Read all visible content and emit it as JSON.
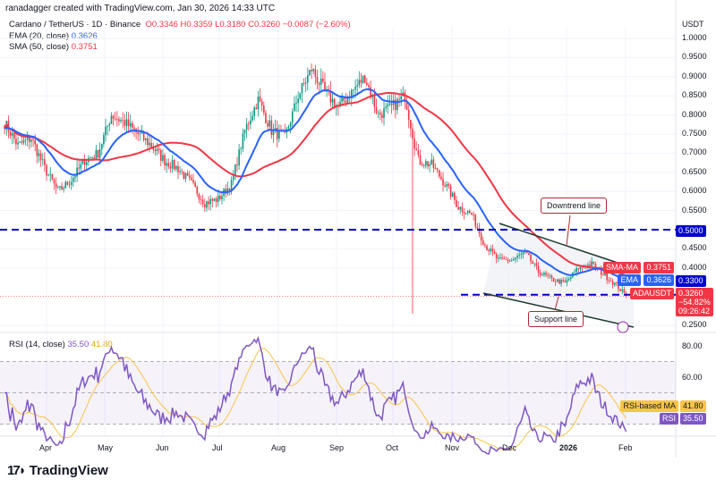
{
  "header": {
    "credit": "ranadagger created with TradingView.com, Jan 30, 2026 14:33 UTC"
  },
  "legend": {
    "symbol": "Cardano / TetherUS · 1D · Binance",
    "o": "O0.3346",
    "h": "H0.3359",
    "l": "L0.3180",
    "c": "C0.3260",
    "chg": "−0.0087 (−2.60%)",
    "ema_label": "EMA (20, close)",
    "ema_val": "0.3626",
    "sma_label": "SMA (50, close)",
    "sma_val": "0.3751",
    "rsi_label": "RSI (14, close)",
    "rsi_val": "35.50",
    "rsi_ma_val": "41.80"
  },
  "price_axis": {
    "currency": "USDT",
    "ticks": [
      "1.0000",
      "0.9500",
      "0.9000",
      "0.8500",
      "0.8000",
      "0.7500",
      "0.7000",
      "0.6500",
      "0.6000",
      "0.5500",
      "0.4500",
      "0.4000",
      "0.2500"
    ]
  },
  "tags": {
    "sma_name": "SMA-MA",
    "sma": "0.3751",
    "ema_name": "EMA",
    "ema": "0.3626",
    "level": "0.3300",
    "sym": "ADAUSDT",
    "price": "0.3260",
    "pct": "−54.82%",
    "countdown": "09:26:42",
    "level2": "0.5000",
    "rsi_ma_name": "RSI-based MA",
    "rsi_ma": "41.80",
    "rsi_name": "RSI",
    "rsi": "35.50"
  },
  "rsi_axis": {
    "ticks": [
      "80.00",
      "60.00"
    ]
  },
  "time_axis": {
    "ticks": [
      "Apr",
      "May",
      "Jun",
      "Jul",
      "Aug",
      "Sep",
      "Oct",
      "Nov",
      "Dec",
      "2026",
      "Feb"
    ]
  },
  "annotations": {
    "downtrend": "Downtrend line",
    "support": "Support line"
  },
  "brand": "TradingView",
  "colors": {
    "up": "#089981",
    "down": "#f23645",
    "ema": "#2962ff",
    "sma": "#f23645",
    "rsi": "#7e57c2",
    "rsi_ma": "#f7c548",
    "level": "#0000cc",
    "channel": "#1e3a2f"
  },
  "chart_data": {
    "type": "candlestick",
    "title": "Cardano / TetherUS · 1D · Binance",
    "yscale": "linear",
    "ylim": [
      0.25,
      1.02
    ],
    "horizontal_levels": [
      0.5,
      0.33
    ],
    "weekly_dates": [
      "2025-03-10",
      "2025-03-17",
      "2025-03-24",
      "2025-03-31",
      "2025-04-07",
      "2025-04-14",
      "2025-04-21",
      "2025-04-28",
      "2025-05-05",
      "2025-05-12",
      "2025-05-19",
      "2025-05-26",
      "2025-06-02",
      "2025-06-09",
      "2025-06-16",
      "2025-06-23",
      "2025-06-30",
      "2025-07-07",
      "2025-07-14",
      "2025-07-21",
      "2025-07-28",
      "2025-08-04",
      "2025-08-11",
      "2025-08-18",
      "2025-08-25",
      "2025-09-01",
      "2025-09-08",
      "2025-09-15",
      "2025-09-22",
      "2025-09-29",
      "2025-10-06",
      "2025-10-13",
      "2025-10-20",
      "2025-10-27",
      "2025-11-03",
      "2025-11-10",
      "2025-11-17",
      "2025-11-24",
      "2025-12-01",
      "2025-12-08",
      "2025-12-15",
      "2025-12-22",
      "2025-12-29",
      "2026-01-05",
      "2026-01-12",
      "2026-01-19",
      "2026-01-26",
      "2026-01-30"
    ],
    "approx_close": [
      0.78,
      0.72,
      0.74,
      0.66,
      0.6,
      0.63,
      0.68,
      0.7,
      0.8,
      0.78,
      0.75,
      0.72,
      0.68,
      0.66,
      0.62,
      0.57,
      0.58,
      0.62,
      0.76,
      0.84,
      0.76,
      0.74,
      0.85,
      0.92,
      0.86,
      0.82,
      0.86,
      0.9,
      0.8,
      0.82,
      0.85,
      0.68,
      0.67,
      0.62,
      0.56,
      0.54,
      0.46,
      0.42,
      0.42,
      0.44,
      0.39,
      0.37,
      0.36,
      0.4,
      0.41,
      0.38,
      0.35,
      0.326
    ],
    "flash_crash": {
      "date": "2025-10-10",
      "low": 0.28
    },
    "rsi": {
      "ylim": [
        20,
        90
      ],
      "band": [
        30,
        70
      ],
      "last": 35.5,
      "ma_last": 41.8
    }
  }
}
